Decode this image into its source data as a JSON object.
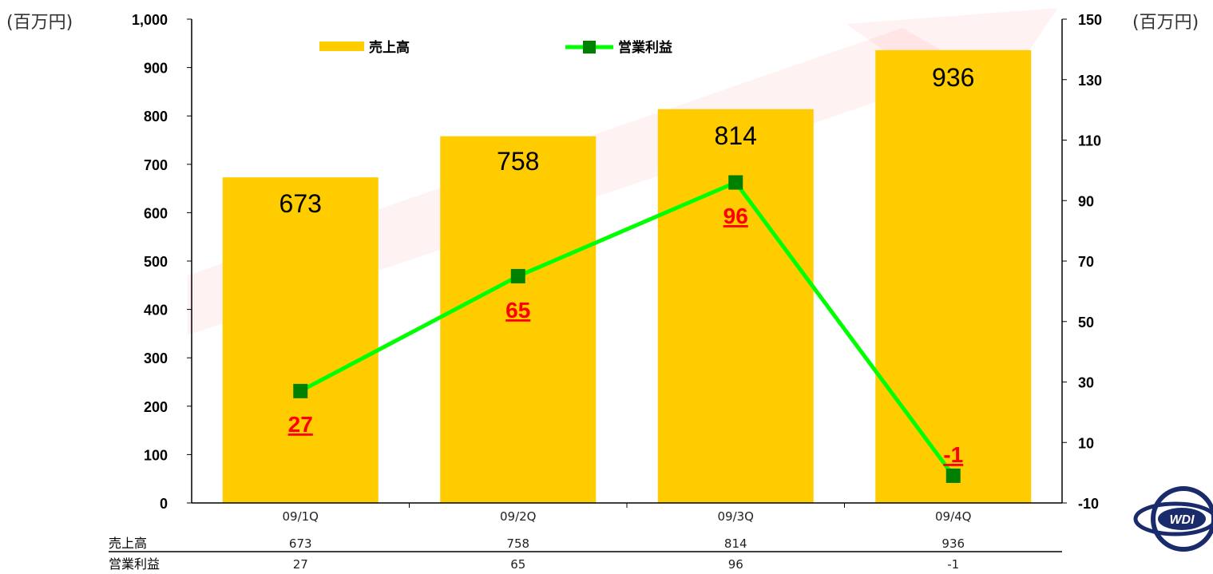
{
  "units": {
    "left": "(百万円)",
    "right": "(百万円)"
  },
  "chart_data": {
    "type": "bar",
    "categories": [
      "09/1Q",
      "09/2Q",
      "09/3Q",
      "09/4Q"
    ],
    "series": [
      {
        "name": "売上高",
        "type": "bar",
        "axis": "left",
        "values": [
          673,
          758,
          814,
          936
        ],
        "color": "#ffcc00"
      },
      {
        "name": "営業利益",
        "type": "line",
        "axis": "right",
        "values": [
          27,
          65,
          96,
          -1
        ],
        "color": "#00ff00",
        "marker_color": "#008000"
      }
    ],
    "y_left": {
      "range": [
        0,
        1000
      ],
      "ticks": [
        0,
        100,
        200,
        300,
        400,
        500,
        600,
        700,
        800,
        900,
        1000
      ],
      "tick_labels": [
        "0",
        "100",
        "200",
        "300",
        "400",
        "500",
        "600",
        "700",
        "800",
        "900",
        "1,000"
      ]
    },
    "y_right": {
      "range": [
        -10,
        150
      ],
      "ticks": [
        -10,
        10,
        30,
        50,
        70,
        90,
        110,
        130,
        150
      ],
      "tick_labels": [
        "-10",
        "10",
        "30",
        "50",
        "70",
        "90",
        "110",
        "130",
        "150"
      ]
    },
    "bar_labels": [
      "673",
      "758",
      "814",
      "936"
    ],
    "line_labels": [
      "27",
      "65",
      "96",
      "-1"
    ],
    "legend": {
      "placement": "top"
    },
    "grid": false
  },
  "table": {
    "rows": [
      {
        "label": "売上高",
        "values": [
          "673",
          "758",
          "814",
          "936"
        ]
      },
      {
        "label": "営業利益",
        "values": [
          "27",
          "65",
          "96",
          "-1"
        ]
      }
    ]
  },
  "logo": {
    "text": "WDI"
  },
  "colors": {
    "accent_swoosh": "#ff0000"
  }
}
